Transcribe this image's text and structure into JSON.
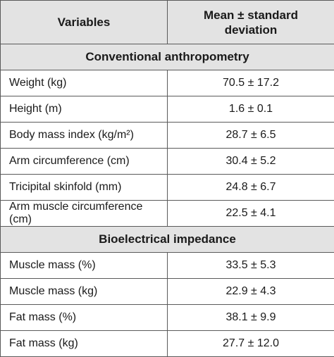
{
  "table": {
    "columns": [
      "Variables",
      "Mean ± standard deviation"
    ],
    "sections": [
      {
        "title": "Conventional anthropometry",
        "rows": [
          [
            "Weight (kg)",
            "70.5 ± 17.2"
          ],
          [
            "Height (m)",
            "1.6 ± 0.1"
          ],
          [
            "Body mass index (kg/m²)",
            "28.7 ± 6.5"
          ],
          [
            "Arm circumference (cm)",
            "30.4 ± 5.2"
          ],
          [
            "Tricipital skinfold (mm)",
            "24.8 ± 6.7"
          ],
          [
            "Arm muscle circumference (cm)",
            "22.5 ± 4.1"
          ]
        ]
      },
      {
        "title": "Bioelectrical impedance",
        "rows": [
          [
            "Muscle mass (%)",
            "33.5 ± 5.3"
          ],
          [
            "Muscle mass (kg)",
            "22.9 ± 4.3"
          ],
          [
            "Fat mass (%)",
            "38.1 ± 9.9"
          ],
          [
            "Fat mass (kg)",
            "27.7 ± 12.0"
          ]
        ]
      }
    ]
  }
}
